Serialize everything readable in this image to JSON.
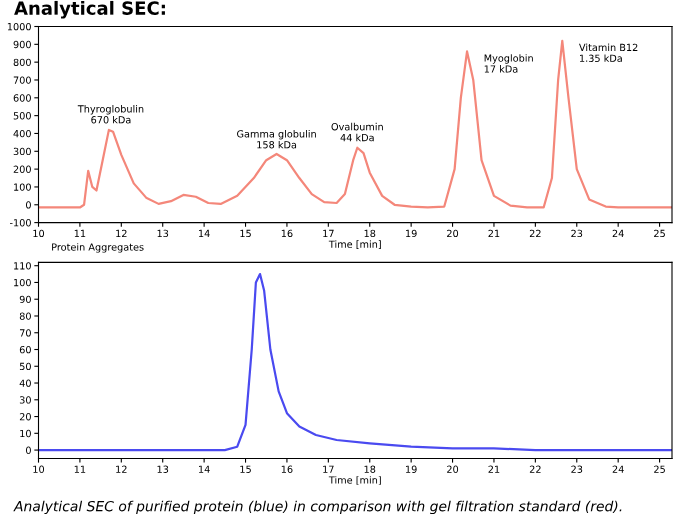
{
  "chart_data": [
    {
      "type": "line",
      "title": "Analytical SEC:",
      "xlabel": "Time [min]",
      "xlim": [
        10,
        25.3
      ],
      "xticks": [
        10,
        11,
        12,
        13,
        14,
        15,
        16,
        17,
        18,
        19,
        20,
        21,
        22,
        23,
        24,
        25
      ],
      "ylim": [
        -100,
        1000
      ],
      "yticks": [
        -100,
        0,
        100,
        200,
        300,
        400,
        500,
        600,
        700,
        800,
        900,
        1000
      ],
      "grid": false,
      "legend": false,
      "x": [
        10,
        11,
        11.1,
        11.2,
        11.3,
        11.4,
        11.55,
        11.7,
        11.8,
        12.0,
        12.3,
        12.6,
        12.9,
        13.2,
        13.5,
        13.8,
        14.1,
        14.4,
        14.8,
        15.2,
        15.5,
        15.75,
        16.0,
        16.3,
        16.6,
        16.9,
        17.2,
        17.4,
        17.6,
        17.7,
        17.85,
        18.0,
        18.3,
        18.6,
        19.0,
        19.4,
        19.8,
        20.05,
        20.2,
        20.35,
        20.5,
        20.7,
        21.0,
        21.4,
        21.8,
        22.2,
        22.4,
        22.55,
        22.65,
        22.8,
        23.0,
        23.3,
        23.7,
        24,
        25.3
      ],
      "series": [
        {
          "color": "#f4877a",
          "values": [
            -15,
            -15,
            0,
            190,
            100,
            80,
            250,
            420,
            410,
            280,
            120,
            40,
            5,
            20,
            55,
            45,
            10,
            5,
            50,
            150,
            250,
            285,
            250,
            150,
            60,
            15,
            10,
            60,
            250,
            320,
            290,
            180,
            50,
            0,
            -10,
            -15,
            -10,
            200,
            600,
            860,
            700,
            250,
            50,
            -5,
            -15,
            -15,
            150,
            700,
            920,
            600,
            200,
            30,
            -10,
            -15,
            -15
          ]
        }
      ],
      "annotations": [
        {
          "text": "Thyroglobulin\n670 kDa",
          "x": 11.75,
          "y": 430
        },
        {
          "text": "Gamma globulin\n158 kDa",
          "x": 15.75,
          "y": 290
        },
        {
          "text": "Ovalbumin\n44 kDa",
          "x": 17.7,
          "y": 330
        },
        {
          "text": "Myoglobin\n17 kDa",
          "x": 20.35,
          "y": 860
        },
        {
          "text": "Vitamin B12\n1.35 kDa",
          "x": 22.65,
          "y": 920
        },
        "Protein Aggregates"
      ]
    },
    {
      "type": "line",
      "xlabel": "Time [min]",
      "xlim": [
        10,
        25.3
      ],
      "xticks": [
        10,
        11,
        12,
        13,
        14,
        15,
        16,
        17,
        18,
        19,
        20,
        21,
        22,
        23,
        24,
        25
      ],
      "ylim": [
        -5,
        112
      ],
      "yticks": [
        0,
        10,
        20,
        30,
        40,
        50,
        60,
        70,
        80,
        90,
        100,
        110
      ],
      "grid": false,
      "legend": false,
      "x": [
        10,
        14.5,
        14.8,
        15.0,
        15.15,
        15.25,
        15.35,
        15.45,
        15.6,
        15.8,
        16.0,
        16.3,
        16.7,
        17.2,
        18,
        19,
        20,
        21,
        22,
        25.3
      ],
      "series": [
        {
          "color": "#4a4af0",
          "values": [
            0,
            0,
            2,
            15,
            60,
            100,
            105,
            95,
            60,
            35,
            22,
            14,
            9,
            6,
            4,
            2,
            1,
            1,
            0,
            0
          ]
        }
      ],
      "annotations": [
        "Analytical SEC of purified protein (blue) in comparison with gel filtration standard (red)."
      ]
    }
  ]
}
